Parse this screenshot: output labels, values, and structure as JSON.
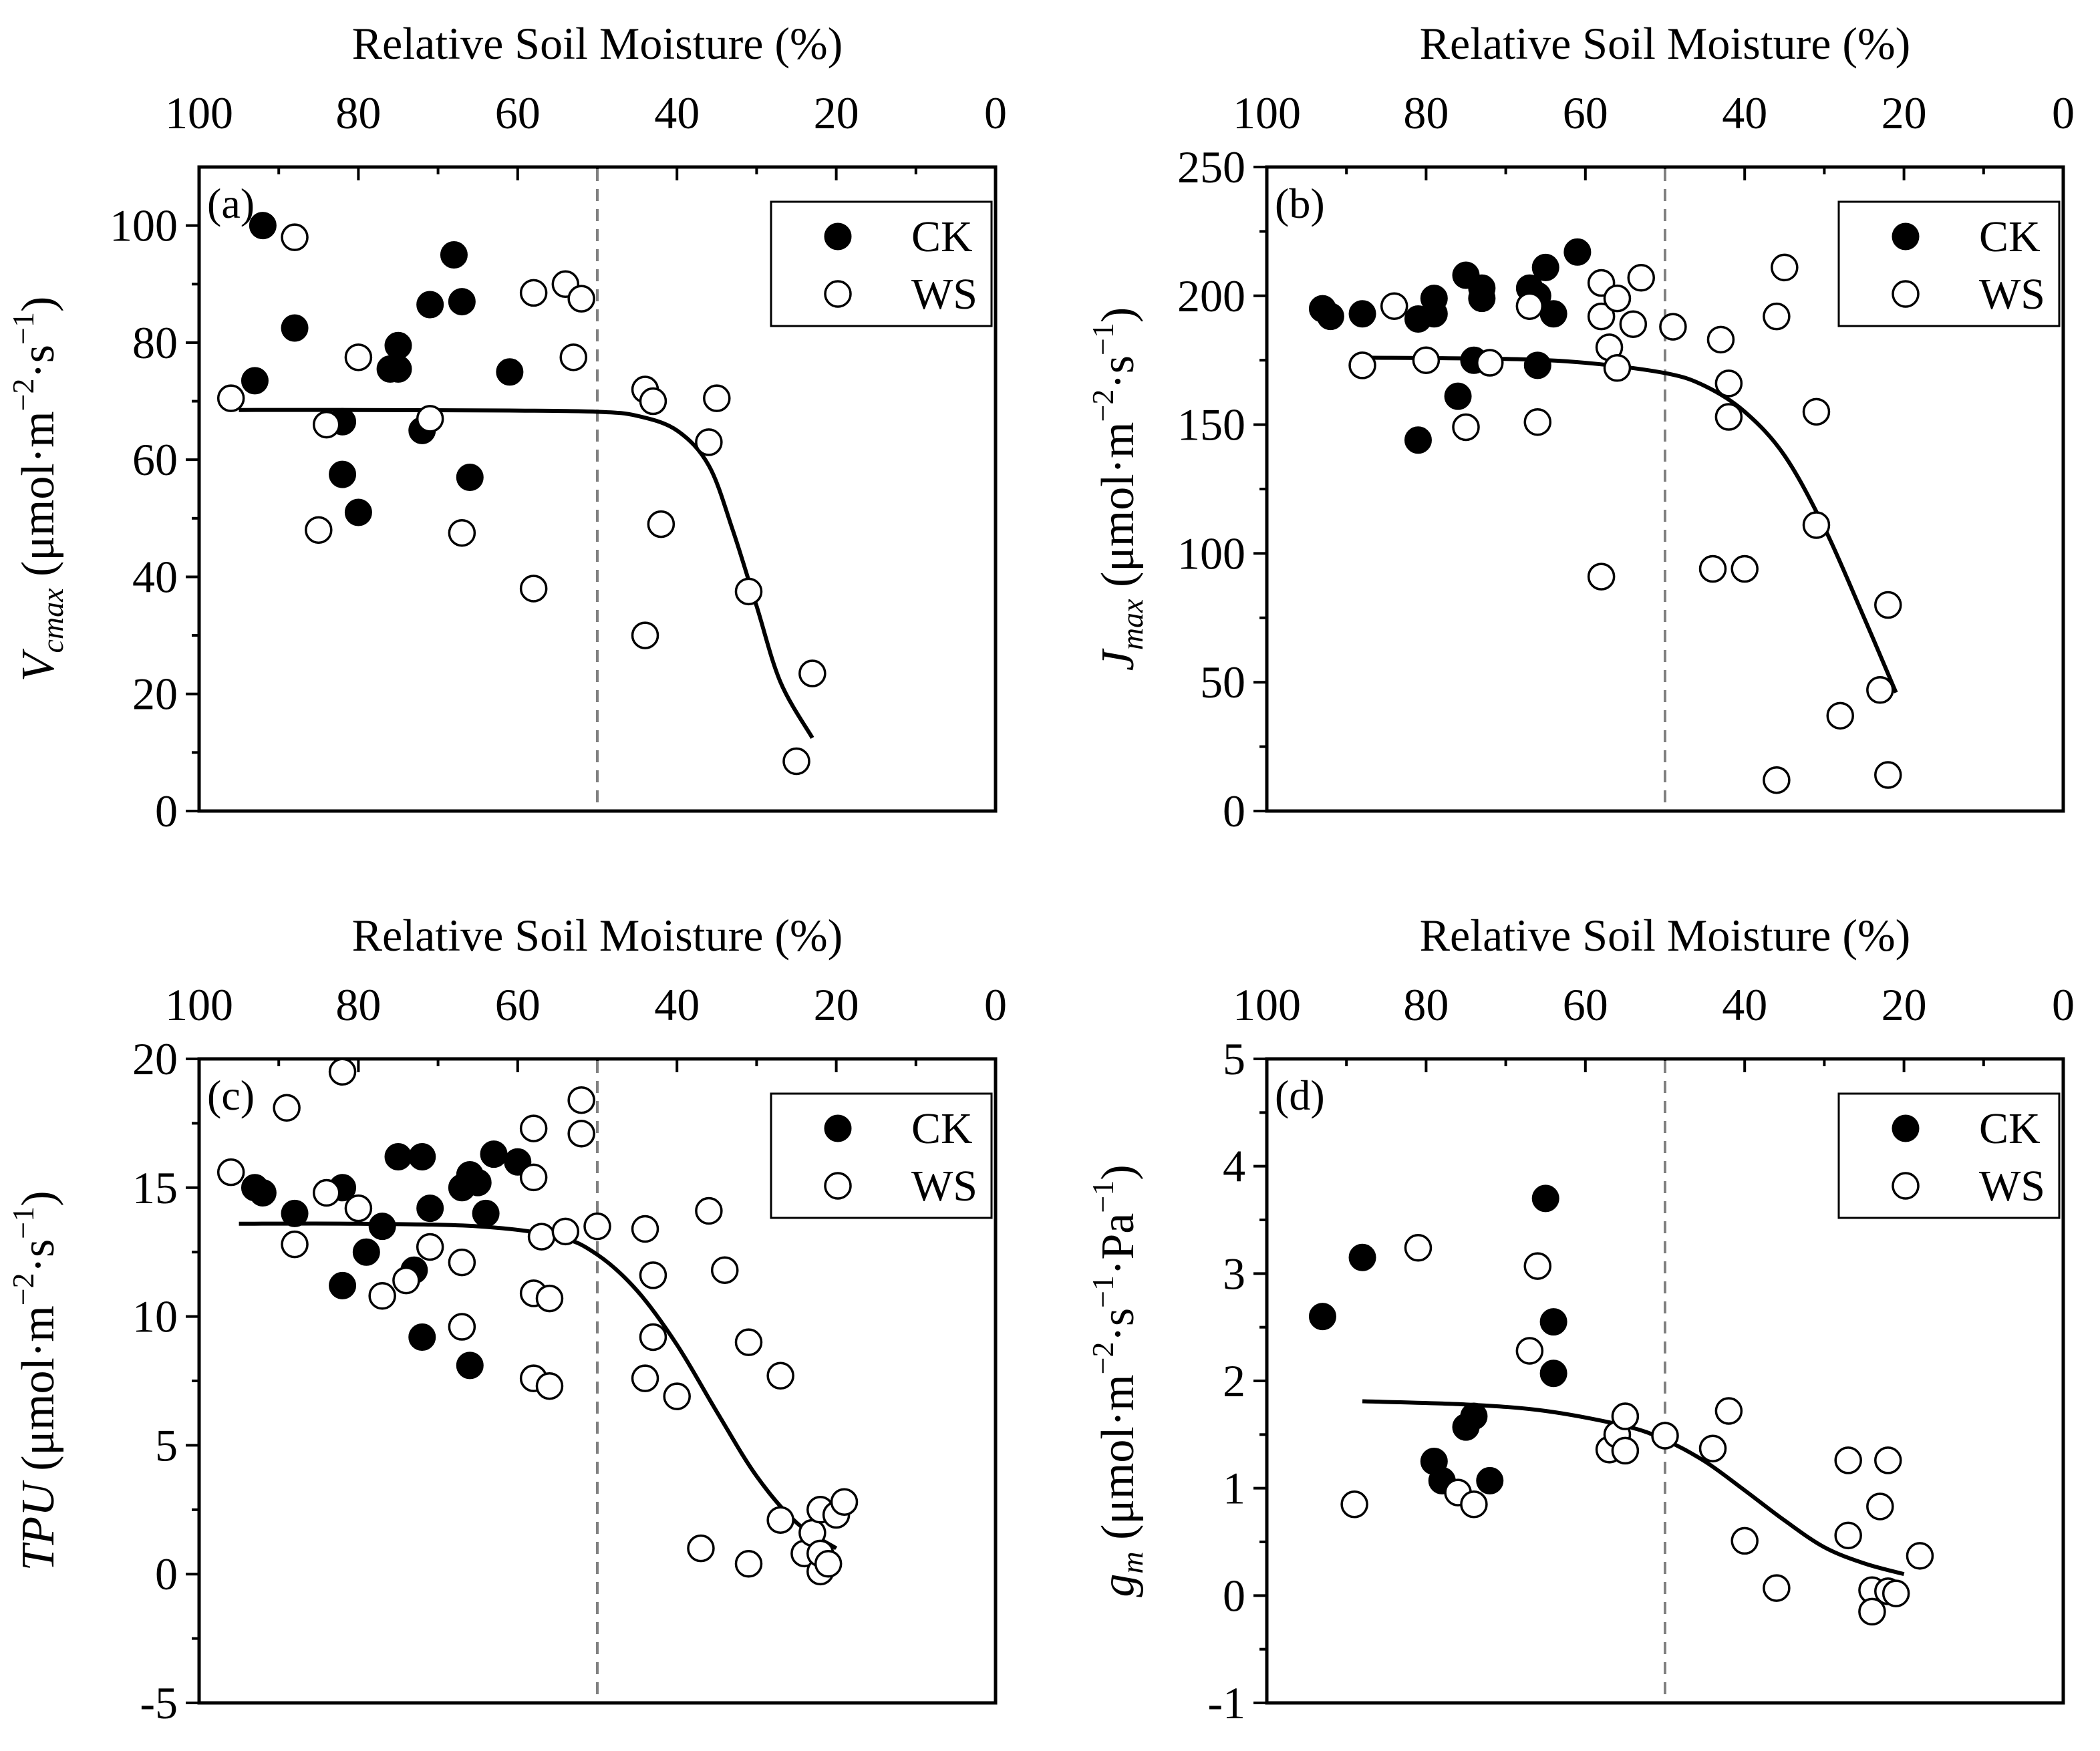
{
  "chart_data": [
    {
      "panel": "(a)",
      "type": "scatter",
      "top_xlabel": "Relative Soil Moisture (%)",
      "xlim": [
        100,
        0
      ],
      "xticks": [
        "100",
        "80",
        "60",
        "40",
        "20",
        "0"
      ],
      "ylabel_italic": "V",
      "ylabel_sub": "cmax",
      "ylabel_unit": "(μmol·m",
      "ylabel_sup": "−2",
      "ylabel_unit2": "·s",
      "ylabel_sup2": "−1",
      "ylabel_close": ")",
      "ylim": [
        0,
        110
      ],
      "yticks": [
        "0",
        "20",
        "40",
        "60",
        "80",
        "100"
      ],
      "threshold_x": 50,
      "legend": {
        "ck": "CK",
        "ws": "WS",
        "position": "top-right"
      },
      "series": [
        {
          "name": "CK",
          "points": [
            [
              92,
              100
            ],
            [
              93,
              73.5
            ],
            [
              88,
              82.5
            ],
            [
              82,
              66.5
            ],
            [
              82,
              57.5
            ],
            [
              80,
              51
            ],
            [
              76,
              75.5
            ],
            [
              75,
              75.5
            ],
            [
              75,
              79.5
            ],
            [
              72,
              65
            ],
            [
              71,
              86.5
            ],
            [
              68,
              95
            ],
            [
              67,
              87
            ],
            [
              66,
              57
            ],
            [
              61,
              75
            ]
          ]
        },
        {
          "name": "WS",
          "points": [
            [
              96,
              70.5
            ],
            [
              88,
              98
            ],
            [
              85,
              48
            ],
            [
              84,
              66
            ],
            [
              80,
              77.5
            ],
            [
              71,
              67
            ],
            [
              67,
              47.5
            ],
            [
              58,
              38
            ],
            [
              58,
              88.5
            ],
            [
              54,
              90
            ],
            [
              53,
              77.5
            ],
            [
              52,
              87.5
            ],
            [
              44,
              30
            ],
            [
              44,
              72
            ],
            [
              43,
              70
            ],
            [
              42,
              49
            ],
            [
              36,
              63
            ],
            [
              35,
              70.5
            ],
            [
              31,
              37.5
            ],
            [
              25,
              8.5
            ],
            [
              23,
              23.5
            ]
          ]
        }
      ],
      "fit": [
        [
          95,
          68.5
        ],
        [
          80,
          68.5
        ],
        [
          60,
          68.4
        ],
        [
          50,
          68.2
        ],
        [
          45,
          67.5
        ],
        [
          40,
          65
        ],
        [
          36,
          59
        ],
        [
          33,
          48
        ],
        [
          30,
          35
        ],
        [
          27,
          22
        ],
        [
          23,
          12.5
        ]
      ]
    },
    {
      "panel": "(b)",
      "type": "scatter",
      "top_xlabel": "Relative Soil Moisture (%)",
      "xlim": [
        100,
        0
      ],
      "xticks": [
        "100",
        "80",
        "60",
        "40",
        "20",
        "0"
      ],
      "ylabel_italic": "J",
      "ylabel_sub": "max",
      "ylabel_unit": "(μmol·m",
      "ylabel_sup": "−2",
      "ylabel_unit2": "·s",
      "ylabel_sup2": "−1",
      "ylabel_close": ")",
      "ylim": [
        0,
        250
      ],
      "yticks": [
        "0",
        "50",
        "100",
        "150",
        "200",
        "250"
      ],
      "threshold_x": 50,
      "legend": {
        "ck": "CK",
        "ws": "WS",
        "position": "top-right"
      },
      "series": [
        {
          "name": "CK",
          "points": [
            [
              93,
              195
            ],
            [
              92,
              192
            ],
            [
              88,
              193
            ],
            [
              81,
              191
            ],
            [
              81,
              144
            ],
            [
              79,
              193
            ],
            [
              79,
              199
            ],
            [
              76,
              161
            ],
            [
              75,
              208
            ],
            [
              74,
              175
            ],
            [
              73,
              203
            ],
            [
              73,
              199
            ],
            [
              67,
              203
            ],
            [
              66,
              173
            ],
            [
              66,
              200
            ],
            [
              65,
              211
            ],
            [
              64,
              193
            ],
            [
              61,
              217
            ]
          ]
        },
        {
          "name": "WS",
          "points": [
            [
              88,
              173
            ],
            [
              84,
              196
            ],
            [
              80,
              175
            ],
            [
              75,
              149
            ],
            [
              72,
              174
            ],
            [
              67,
              196
            ],
            [
              66,
              151
            ],
            [
              58,
              205
            ],
            [
              58,
              192
            ],
            [
              58,
              91
            ],
            [
              57,
              180
            ],
            [
              56,
              199
            ],
            [
              56,
              172
            ],
            [
              54,
              189
            ],
            [
              53,
              207
            ],
            [
              49,
              188
            ],
            [
              44,
              94
            ],
            [
              43,
              183
            ],
            [
              42,
              166
            ],
            [
              42,
              153
            ],
            [
              40,
              94
            ],
            [
              36,
              192
            ],
            [
              35,
              211
            ],
            [
              36,
              12
            ],
            [
              31,
              155
            ],
            [
              31,
              111
            ],
            [
              28,
              37
            ],
            [
              23,
              47
            ],
            [
              22,
              80
            ],
            [
              22,
              14
            ]
          ]
        }
      ],
      "fit": [
        [
          88,
          176
        ],
        [
          70,
          175.5
        ],
        [
          60,
          174
        ],
        [
          50,
          170
        ],
        [
          45,
          165
        ],
        [
          40,
          155
        ],
        [
          35,
          138
        ],
        [
          30,
          110
        ],
        [
          25,
          75
        ],
        [
          21,
          46
        ]
      ]
    },
    {
      "panel": "(c)",
      "type": "scatter",
      "top_xlabel": "Relative Soil Moisture (%)",
      "xlim": [
        100,
        0
      ],
      "xticks": [
        "100",
        "80",
        "60",
        "40",
        "20",
        "0"
      ],
      "ylabel_italic": "TPU",
      "ylabel_sub": "",
      "ylabel_unit": "(μmol·m",
      "ylabel_sup": "−2",
      "ylabel_unit2": "·s",
      "ylabel_sup2": "−1",
      "ylabel_close": ")",
      "ylim": [
        -5,
        20
      ],
      "yticks": [
        "-5",
        "0",
        "5",
        "10",
        "15",
        "20"
      ],
      "threshold_x": 50,
      "legend": {
        "ck": "CK",
        "ws": "WS",
        "position": "top-right"
      },
      "series": [
        {
          "name": "CK",
          "points": [
            [
              93,
              15
            ],
            [
              92,
              14.8
            ],
            [
              88,
              14
            ],
            [
              82,
              15
            ],
            [
              82,
              11.2
            ],
            [
              79,
              12.5
            ],
            [
              77,
              13.5
            ],
            [
              75,
              16.2
            ],
            [
              73,
              11.8
            ],
            [
              72,
              16.2
            ],
            [
              72,
              9.2
            ],
            [
              71,
              14.2
            ],
            [
              67,
              15
            ],
            [
              66,
              15.5
            ],
            [
              66,
              8.1
            ],
            [
              65,
              15.2
            ],
            [
              64,
              14
            ],
            [
              63,
              16.3
            ],
            [
              60,
              16
            ]
          ]
        },
        {
          "name": "WS",
          "points": [
            [
              96,
              15.6
            ],
            [
              89,
              18.1
            ],
            [
              88,
              12.8
            ],
            [
              84,
              14.8
            ],
            [
              82,
              19.5
            ],
            [
              80,
              14.2
            ],
            [
              77,
              10.8
            ],
            [
              74,
              11.4
            ],
            [
              71,
              12.7
            ],
            [
              67,
              9.6
            ],
            [
              67,
              12.1
            ],
            [
              58,
              17.3
            ],
            [
              58,
              15.4
            ],
            [
              58,
              7.6
            ],
            [
              58,
              10.9
            ],
            [
              57,
              13.1
            ],
            [
              56,
              10.7
            ],
            [
              56,
              7.3
            ],
            [
              54,
              13.3
            ],
            [
              52,
              17.1
            ],
            [
              52,
              18.4
            ],
            [
              50,
              13.5
            ],
            [
              44,
              13.4
            ],
            [
              44,
              7.6
            ],
            [
              43,
              11.6
            ],
            [
              43,
              9.2
            ],
            [
              40,
              6.9
            ],
            [
              36,
              14.1
            ],
            [
              37,
              1
            ],
            [
              34,
              11.8
            ],
            [
              31,
              9
            ],
            [
              31,
              0.4
            ],
            [
              27,
              7.7
            ],
            [
              27,
              2.1
            ],
            [
              24,
              0.8
            ],
            [
              23,
              1.6
            ],
            [
              22,
              2.5
            ],
            [
              22,
              0.1
            ],
            [
              22,
              0.8
            ],
            [
              21,
              0.4
            ],
            [
              20,
              2.3
            ],
            [
              19,
              2.8
            ]
          ]
        }
      ],
      "fit": [
        [
          95,
          13.6
        ],
        [
          80,
          13.6
        ],
        [
          65,
          13.5
        ],
        [
          55,
          13.1
        ],
        [
          50,
          12.4
        ],
        [
          45,
          11
        ],
        [
          40,
          8.9
        ],
        [
          35,
          6.3
        ],
        [
          30,
          3.8
        ],
        [
          25,
          2
        ],
        [
          20,
          1
        ]
      ]
    },
    {
      "panel": "(d)",
      "type": "scatter",
      "top_xlabel": "Relative Soil Moisture (%)",
      "xlim": [
        100,
        0
      ],
      "xticks": [
        "100",
        "80",
        "60",
        "40",
        "20",
        "0"
      ],
      "ylabel_italic": "g",
      "ylabel_sub": "m",
      "ylabel_unit": "(μmol·m",
      "ylabel_sup": "−2",
      "ylabel_unit2": "·s",
      "ylabel_sup2": "−1",
      "ylabel_unit3": "·Pa",
      "ylabel_sup3": "−1",
      "ylabel_close": ")",
      "ylim": [
        -1,
        5
      ],
      "yticks": [
        "-1",
        "0",
        "1",
        "2",
        "3",
        "4",
        "5"
      ],
      "threshold_x": 50,
      "legend": {
        "ck": "CK",
        "ws": "WS",
        "position": "top-right"
      },
      "series": [
        {
          "name": "CK",
          "points": [
            [
              93,
              2.6
            ],
            [
              88,
              3.15
            ],
            [
              79,
              1.25
            ],
            [
              78,
              1.07
            ],
            [
              75,
              1.57
            ],
            [
              74,
              1.67
            ],
            [
              72,
              1.07
            ],
            [
              65,
              3.7
            ],
            [
              64,
              2.55
            ],
            [
              64,
              2.07
            ]
          ]
        },
        {
          "name": "WS",
          "points": [
            [
              89,
              0.85
            ],
            [
              81,
              3.24
            ],
            [
              76,
              0.96
            ],
            [
              74,
              0.85
            ],
            [
              67,
              2.28
            ],
            [
              66,
              3.07
            ],
            [
              57,
              1.36
            ],
            [
              56,
              1.5
            ],
            [
              55,
              1.67
            ],
            [
              55,
              1.35
            ],
            [
              50,
              1.49
            ],
            [
              44,
              1.37
            ],
            [
              42,
              1.72
            ],
            [
              40,
              0.51
            ],
            [
              36,
              0.07
            ],
            [
              27,
              1.26
            ],
            [
              27,
              0.56
            ],
            [
              24,
              0.05
            ],
            [
              24,
              -0.15
            ],
            [
              23,
              0.83
            ],
            [
              22,
              0.04
            ],
            [
              22,
              1.26
            ],
            [
              21,
              0.02
            ],
            [
              18,
              0.37
            ]
          ]
        }
      ],
      "fit": [
        [
          88,
          1.81
        ],
        [
          75,
          1.78
        ],
        [
          65,
          1.72
        ],
        [
          55,
          1.58
        ],
        [
          50,
          1.45
        ],
        [
          45,
          1.25
        ],
        [
          40,
          0.98
        ],
        [
          35,
          0.7
        ],
        [
          30,
          0.45
        ],
        [
          25,
          0.3
        ],
        [
          20,
          0.2
        ]
      ]
    }
  ]
}
